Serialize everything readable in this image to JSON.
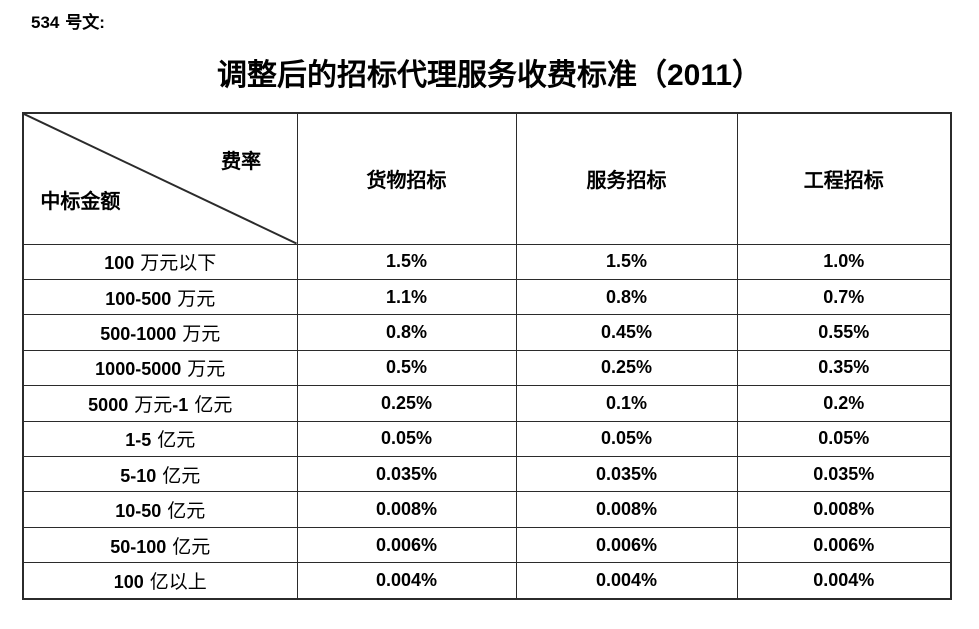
{
  "doc_label": "534 号文:",
  "title": "调整后的招标代理服务收费标准（2011）",
  "colors": {
    "background": "#ffffff",
    "text": "#000000",
    "border": "#2b2b2b"
  },
  "table": {
    "corner": {
      "top_right": "费率",
      "bottom_left": "中标金额"
    },
    "columns": [
      "货物招标",
      "服务招标",
      "工程招标"
    ],
    "rows": [
      {
        "label": "100 万元以下",
        "values": [
          "1.5%",
          "1.5%",
          "1.0%"
        ]
      },
      {
        "label": "100-500 万元",
        "values": [
          "1.1%",
          "0.8%",
          "0.7%"
        ]
      },
      {
        "label": "500-1000 万元",
        "values": [
          "0.8%",
          "0.45%",
          "0.55%"
        ]
      },
      {
        "label": "1000-5000 万元",
        "values": [
          "0.5%",
          "0.25%",
          "0.35%"
        ]
      },
      {
        "label": "5000 万元-1 亿元",
        "values": [
          "0.25%",
          "0.1%",
          "0.2%"
        ]
      },
      {
        "label": "1-5 亿元",
        "values": [
          "0.05%",
          "0.05%",
          "0.05%"
        ]
      },
      {
        "label": "5-10 亿元",
        "values": [
          "0.035%",
          "0.035%",
          "0.035%"
        ]
      },
      {
        "label": "10-50 亿元",
        "values": [
          "0.008%",
          "0.008%",
          "0.008%"
        ]
      },
      {
        "label": "50-100 亿元",
        "values": [
          "0.006%",
          "0.006%",
          "0.006%"
        ]
      },
      {
        "label": "100 亿以上",
        "values": [
          "0.004%",
          "0.004%",
          "0.004%"
        ]
      }
    ]
  }
}
